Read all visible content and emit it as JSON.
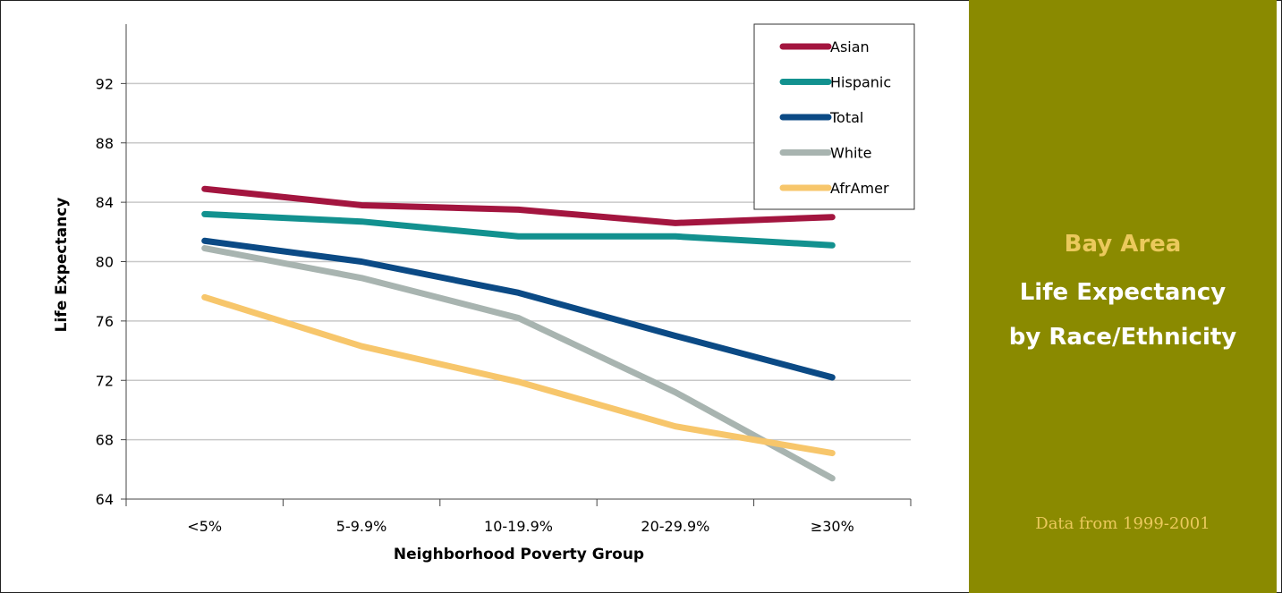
{
  "panel": {
    "line1": "Bay Area",
    "line2": "Life Expectancy",
    "line3": "by Race/Ethnicity",
    "note": "Data from 1999-2001",
    "bg_color": "#8a8a00",
    "accent_color": "#ebc95c"
  },
  "chart_data": {
    "type": "line",
    "title": "",
    "xlabel": "Neighborhood Poverty Group",
    "ylabel": "Life Expectancy",
    "categories": [
      "<5%",
      "5-9.9%",
      "10-19.9%",
      "20-29.9%",
      "≥30%"
    ],
    "ylim": [
      64,
      96
    ],
    "yticks": [
      64,
      68,
      72,
      76,
      80,
      84,
      88,
      92
    ],
    "grid": true,
    "legend_position": "top-right",
    "series": [
      {
        "name": "Asian",
        "color": "#a3153f",
        "values": [
          84.9,
          83.8,
          83.5,
          82.6,
          83.0
        ]
      },
      {
        "name": "Hispanic",
        "color": "#12918f",
        "values": [
          83.2,
          82.7,
          81.7,
          81.7,
          81.1
        ]
      },
      {
        "name": "Total",
        "color": "#0b4a85",
        "values": [
          81.4,
          80.0,
          77.9,
          75.0,
          72.2
        ]
      },
      {
        "name": "White",
        "color": "#a8b4b0",
        "values": [
          80.9,
          78.9,
          76.2,
          71.2,
          65.4
        ]
      },
      {
        "name": "AfrAmer",
        "color": "#f7c66b",
        "values": [
          77.6,
          74.3,
          71.9,
          68.9,
          67.1
        ]
      }
    ]
  }
}
